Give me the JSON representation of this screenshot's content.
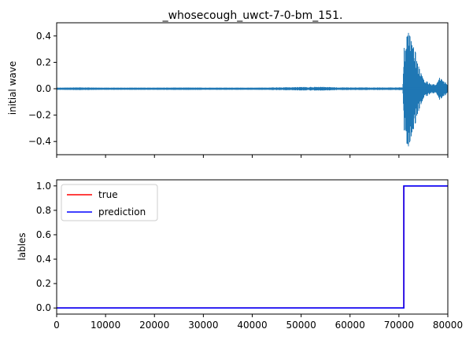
{
  "colors": {
    "wave": "#1f77b4",
    "true": "#ff0000",
    "prediction": "#0000ff"
  },
  "chart_data": [
    {
      "type": "line",
      "title": "_whosecough_uwct-7-0-bm_151.",
      "xlabel": "",
      "ylabel": "initial wave",
      "xlim": [
        0,
        80000
      ],
      "ylim": [
        -0.5,
        0.5
      ],
      "yticks": [
        -0.4,
        -0.2,
        0.0,
        0.2,
        0.4
      ],
      "ytick_labels": [
        "−0.4",
        "−0.2",
        "0.0",
        "0.2",
        "0.4"
      ],
      "xticks": [
        0,
        10000,
        20000,
        30000,
        40000,
        50000,
        60000,
        70000,
        80000
      ],
      "xtick_labels_shown": false,
      "grid": false,
      "series": [
        {
          "color": "#1f77b4",
          "envelope": {
            "x": [
              0,
              5000,
              10000,
              20000,
              27000,
              30000,
              40000,
              54000,
              56000,
              60000,
              70800,
              71000,
              71300,
              71800,
              72300,
              72800,
              73300,
              73800,
              74500,
              75500,
              76500,
              77500,
              78500,
              79000,
              79500,
              80000
            ],
            "max": [
              0.008,
              0.01,
              0.008,
              0.008,
              0.01,
              0.008,
              0.008,
              0.015,
              0.012,
              0.01,
              0.01,
              0.3,
              0.35,
              0.45,
              0.42,
              0.33,
              0.3,
              0.2,
              0.12,
              0.06,
              0.04,
              0.03,
              0.1,
              0.06,
              0.05,
              0.03
            ],
            "min": [
              -0.008,
              -0.01,
              -0.008,
              -0.008,
              -0.01,
              -0.008,
              -0.008,
              -0.015,
              -0.012,
              -0.01,
              -0.01,
              -0.3,
              -0.38,
              -0.47,
              -0.42,
              -0.33,
              -0.28,
              -0.2,
              -0.12,
              -0.06,
              -0.04,
              -0.03,
              -0.1,
              -0.06,
              -0.05,
              -0.03
            ]
          }
        }
      ]
    },
    {
      "type": "line",
      "title": "",
      "xlabel": "",
      "ylabel": "lables",
      "xlim": [
        0,
        80000
      ],
      "ylim": [
        -0.05,
        1.05
      ],
      "yticks": [
        0.0,
        0.2,
        0.4,
        0.6,
        0.8,
        1.0
      ],
      "ytick_labels": [
        "0.0",
        "0.2",
        "0.4",
        "0.6",
        "0.8",
        "1.0"
      ],
      "xticks": [
        0,
        10000,
        20000,
        30000,
        40000,
        50000,
        60000,
        70000,
        80000
      ],
      "xtick_labels": [
        "0",
        "10000",
        "20000",
        "30000",
        "40000",
        "50000",
        "60000",
        "70000",
        "80000"
      ],
      "grid": false,
      "legend": "top-left",
      "series": [
        {
          "name": "true",
          "color": "#ff0000",
          "x": [
            0,
            71000,
            71000,
            80000
          ],
          "y": [
            0,
            0,
            1,
            1
          ]
        },
        {
          "name": "prediction",
          "color": "#0000ff",
          "x": [
            0,
            71000,
            71000,
            80000
          ],
          "y": [
            0,
            0,
            1,
            1
          ]
        }
      ]
    }
  ]
}
